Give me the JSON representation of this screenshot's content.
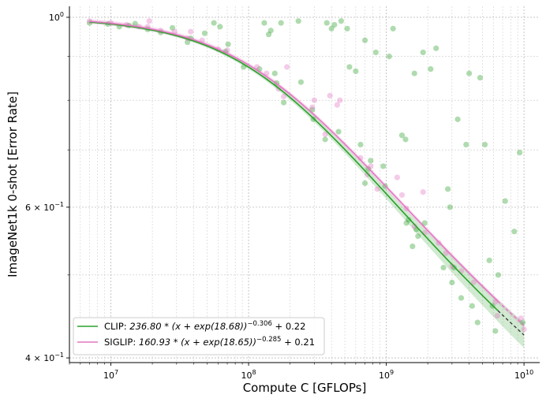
{
  "chart_data": {
    "type": "scatter",
    "xlabel": "Compute C [GFLOPs]",
    "ylabel": "ImageNet1k 0-shot [Error Rate]",
    "x_scale": "log",
    "y_scale": "log",
    "xlim": [
      5000000,
      13000000000
    ],
    "ylim": [
      0.395,
      1.03
    ],
    "x_ticks": [
      {
        "value": 10000000,
        "base": "10",
        "exp": "7"
      },
      {
        "value": 100000000,
        "base": "10",
        "exp": "8"
      },
      {
        "value": 1000000000,
        "base": "10",
        "exp": "9"
      },
      {
        "value": 10000000000,
        "base": "10",
        "exp": "10"
      }
    ],
    "y_ticks": [
      {
        "value": 1.0,
        "mant": "",
        "base": "10",
        "exp": "0"
      },
      {
        "value": 0.6,
        "mant": "6 × ",
        "base": "10",
        "exp": "−1"
      },
      {
        "value": 0.4,
        "mant": "4 × ",
        "base": "10",
        "exp": "−1"
      }
    ],
    "grid": true,
    "legend_placement": "lower-left",
    "series": [
      {
        "name": "CLIP: 236.80 * (x + exp(18.68))^−0.306 + 0.22",
        "legend": {
          "lead": "CLIP: ",
          "body": "236.80 * (x + exp(18.68))",
          "exp": "−0.306",
          "tail": " + 0.22"
        },
        "color": "#2ca02c",
        "fit": {
          "a": 236.8,
          "b": 18.68,
          "alpha": 0.306,
          "e": 0.22
        },
        "points": [
          [
            7000000.0,
            0.985
          ],
          [
            9500000.0,
            0.982
          ],
          [
            11500000.0,
            0.975
          ],
          [
            13500000.0,
            0.978
          ],
          [
            15000000.0,
            0.983
          ],
          [
            18500000.0,
            0.968
          ],
          [
            23000000.0,
            0.96
          ],
          [
            28000000.0,
            0.972
          ],
          [
            36000000.0,
            0.935
          ],
          [
            38000000.0,
            0.945
          ],
          [
            48000000.0,
            0.958
          ],
          [
            56000000.0,
            0.985
          ],
          [
            62000000.0,
            0.975
          ],
          [
            68000000.0,
            0.912
          ],
          [
            71000000.0,
            0.93
          ],
          [
            92000000.0,
            0.875
          ],
          [
            120000000.0,
            0.87
          ],
          [
            130000000.0,
            0.985
          ],
          [
            140000000.0,
            0.955
          ],
          [
            145000000.0,
            0.965
          ],
          [
            155000000.0,
            0.86
          ],
          [
            160000000.0,
            0.838
          ],
          [
            172000000.0,
            0.985
          ],
          [
            180000000.0,
            0.795
          ],
          [
            230000000.0,
            0.99
          ],
          [
            240000000.0,
            0.84
          ],
          [
            290000000.0,
            0.78
          ],
          [
            295000000.0,
            0.76
          ],
          [
            360000000.0,
            0.72
          ],
          [
            370000000.0,
            0.985
          ],
          [
            400000000.0,
            0.97
          ],
          [
            420000000.0,
            0.98
          ],
          [
            450000000.0,
            0.735
          ],
          [
            470000000.0,
            0.99
          ],
          [
            520000000.0,
            0.97
          ],
          [
            540000000.0,
            0.875
          ],
          [
            600000000.0,
            0.865
          ],
          [
            650000000.0,
            0.71
          ],
          [
            700000000.0,
            0.94
          ],
          [
            700000000.0,
            0.64
          ],
          [
            740000000.0,
            0.665
          ],
          [
            770000000.0,
            0.68
          ],
          [
            840000000.0,
            0.91
          ],
          [
            950000000.0,
            0.67
          ],
          [
            980000000.0,
            0.635
          ],
          [
            1050000000.0,
            0.9
          ],
          [
            1120000000.0,
            0.97
          ],
          [
            1300000000.0,
            0.728
          ],
          [
            1380000000.0,
            0.72
          ],
          [
            1400000000.0,
            0.575
          ],
          [
            1450000000.0,
            0.58
          ],
          [
            1550000000.0,
            0.54
          ],
          [
            1600000000.0,
            0.86
          ],
          [
            1650000000.0,
            0.565
          ],
          [
            1700000000.0,
            0.555
          ],
          [
            1850000000.0,
            0.91
          ],
          [
            1900000000.0,
            0.575
          ],
          [
            2100000000.0,
            0.87
          ],
          [
            2300000000.0,
            0.92
          ],
          [
            2600000000.0,
            0.51
          ],
          [
            2800000000.0,
            0.63
          ],
          [
            2900000000.0,
            0.6
          ],
          [
            3000000000.0,
            0.49
          ],
          [
            3100000000.0,
            0.51
          ],
          [
            3300000000.0,
            0.76
          ],
          [
            3500000000.0,
            0.47
          ],
          [
            3800000000.0,
            0.71
          ],
          [
            4000000000.0,
            0.86
          ],
          [
            4200000000.0,
            0.46
          ],
          [
            4600000000.0,
            0.44
          ],
          [
            4800000000.0,
            0.85
          ],
          [
            5200000000.0,
            0.71
          ],
          [
            5600000000.0,
            0.52
          ],
          [
            5900000000.0,
            0.46
          ],
          [
            6200000000.0,
            0.43
          ],
          [
            6500000000.0,
            0.5
          ],
          [
            7300000000.0,
            0.61
          ],
          [
            8500000000.0,
            0.562
          ],
          [
            9300000000.0,
            0.695
          ],
          [
            9800000000.0,
            0.44
          ]
        ]
      },
      {
        "name": "SIGLIP: 160.93 * (x + exp(18.65))^−0.285 + 0.21",
        "legend": {
          "lead": "SIGLIP: ",
          "body": "160.93 * (x + exp(18.65))",
          "exp": "−0.285",
          "tail": " + 0.21"
        },
        "color": "#e377c2",
        "fit": {
          "a": 160.93,
          "b": 18.65,
          "alpha": 0.285,
          "e": 0.21
        },
        "points": [
          [
            7000000.0,
            0.99
          ],
          [
            10000000.0,
            0.985
          ],
          [
            13000000.0,
            0.98
          ],
          [
            16000000.0,
            0.975
          ],
          [
            18500000.0,
            0.975
          ],
          [
            19000000.0,
            0.99
          ],
          [
            23000000.0,
            0.965
          ],
          [
            29000000.0,
            0.962
          ],
          [
            36000000.0,
            0.945
          ],
          [
            38000000.0,
            0.962
          ],
          [
            46000000.0,
            0.94
          ],
          [
            60000000.0,
            0.918
          ],
          [
            70000000.0,
            0.915
          ],
          [
            115000000.0,
            0.875
          ],
          [
            135000000.0,
            0.86
          ],
          [
            165000000.0,
            0.825
          ],
          [
            180000000.0,
            0.808
          ],
          [
            190000000.0,
            0.875
          ],
          [
            290000000.0,
            0.785
          ],
          [
            300000000.0,
            0.8
          ],
          [
            360000000.0,
            0.73
          ],
          [
            390000000.0,
            0.81
          ],
          [
            440000000.0,
            0.79
          ],
          [
            460000000.0,
            0.8
          ],
          [
            650000000.0,
            0.685
          ],
          [
            730000000.0,
            0.655
          ],
          [
            770000000.0,
            0.67
          ],
          [
            860000000.0,
            0.63
          ],
          [
            1200000000.0,
            0.65
          ],
          [
            1300000000.0,
            0.62
          ],
          [
            1400000000.0,
            0.598
          ],
          [
            1600000000.0,
            0.57
          ],
          [
            1850000000.0,
            0.625
          ],
          [
            1900000000.0,
            0.56
          ],
          [
            2400000000.0,
            0.545
          ],
          [
            2700000000.0,
            0.53
          ],
          [
            3000000000.0,
            0.512
          ],
          [
            3500000000.0,
            0.505
          ],
          [
            4300000000.0,
            0.49
          ],
          [
            6200000000.0,
            0.465
          ],
          [
            6400000000.0,
            0.448
          ],
          [
            9500000000.0,
            0.445
          ],
          [
            10000000000.0,
            0.432
          ]
        ]
      }
    ]
  }
}
